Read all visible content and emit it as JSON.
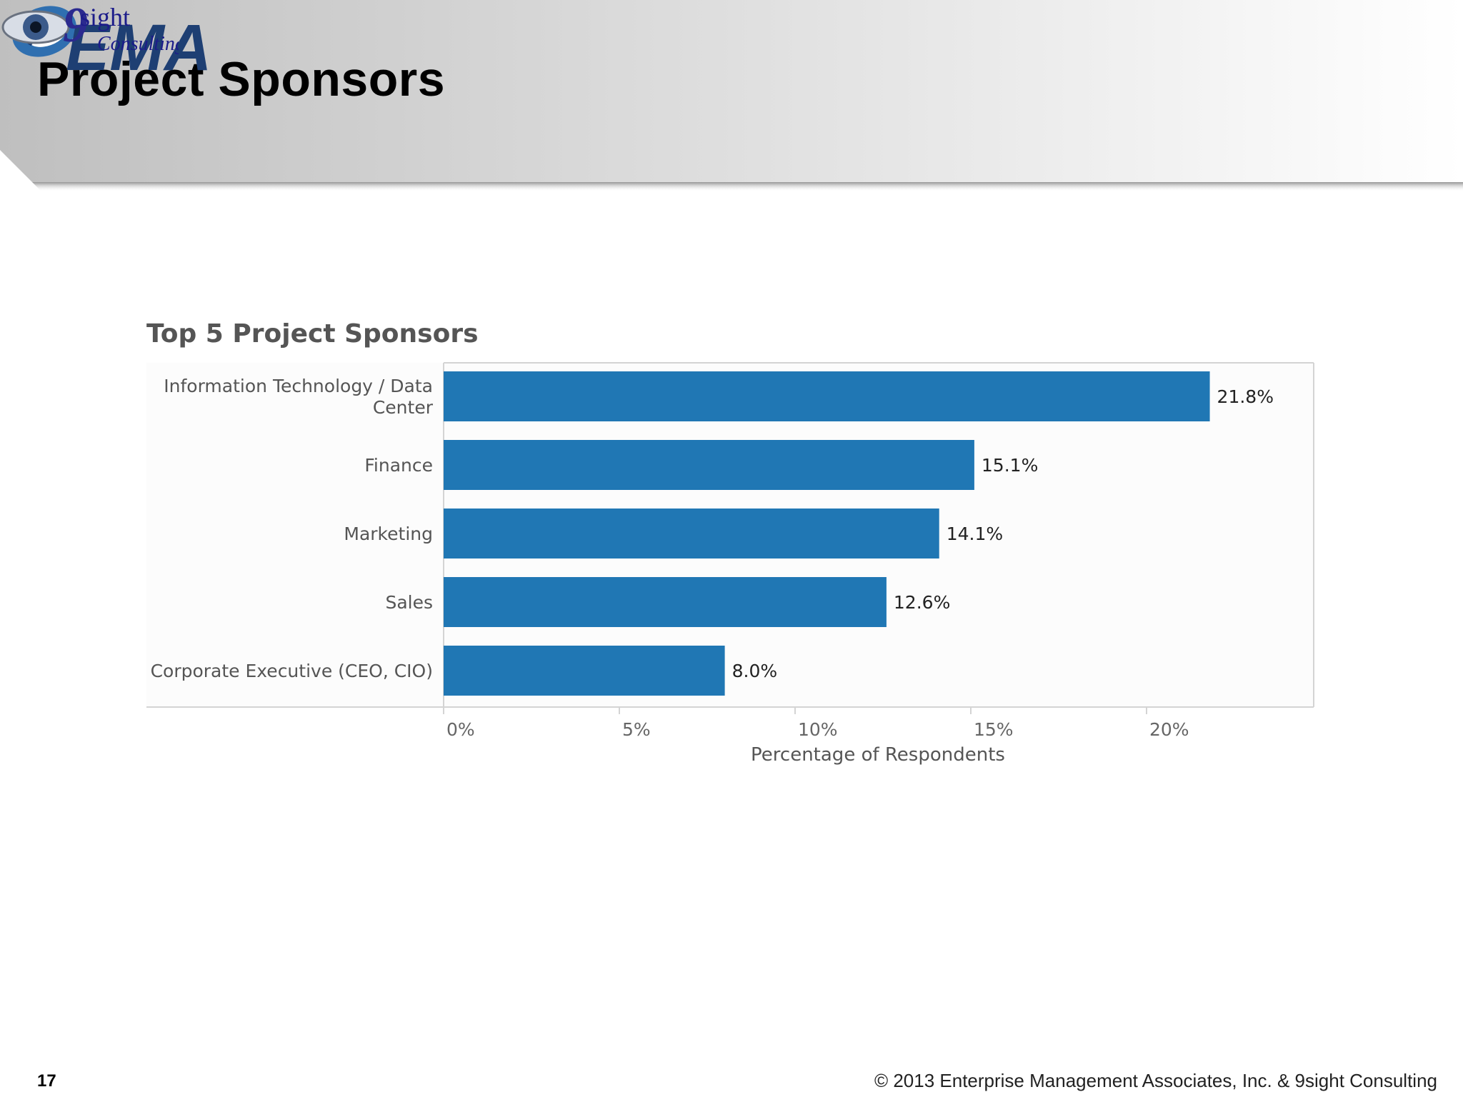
{
  "slide": {
    "title": "Project Sponsors",
    "page_number": "17",
    "copyright": "© 2013 Enterprise Management Associates, Inc. & 9sight Consulting"
  },
  "logos": {
    "ema": "EMA",
    "ninesight_word": "sight",
    "ninesight_sub": "Consulting"
  },
  "colors": {
    "bar": "#2077b4",
    "header_gradient_start": "#c4c4c4",
    "header_gradient_end": "#ffffff",
    "ema_blue": "#1e3f73"
  },
  "chart_data": {
    "type": "bar",
    "orientation": "horizontal",
    "title": "Top 5 Project Sponsors",
    "xlabel": "Percentage of Respondents",
    "ylabel": "",
    "categories": [
      [
        "Information Technology / Data",
        "Center"
      ],
      [
        "Finance"
      ],
      [
        "Marketing"
      ],
      [
        "Sales"
      ],
      [
        "Corporate Executive (CEO, CIO)"
      ]
    ],
    "values": [
      21.8,
      15.1,
      14.1,
      12.6,
      8.0
    ],
    "value_labels": [
      "21.8%",
      "15.1%",
      "14.1%",
      "12.6%",
      "8.0%"
    ],
    "xticks": [
      0,
      5,
      10,
      15,
      20
    ],
    "xtick_labels": [
      "0%",
      "5%",
      "10%",
      "15%",
      "20%"
    ],
    "xlim": [
      0,
      25
    ],
    "grid": false
  }
}
